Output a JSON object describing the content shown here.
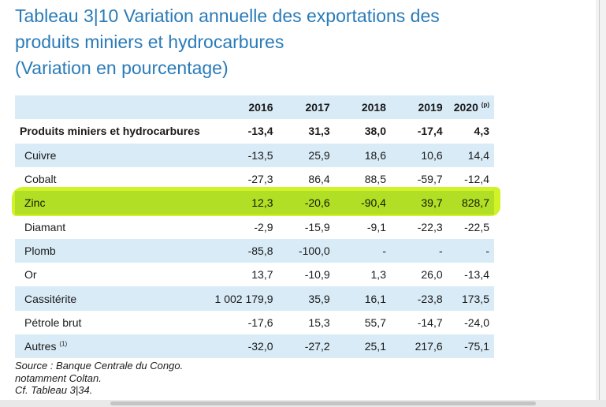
{
  "title": {
    "number": "Tableau 3|10",
    "line1_rest": "Variation annuelle des exportations des",
    "line2": "produits miniers et hydrocarbures",
    "line3": "(Variation en pourcentage)"
  },
  "table": {
    "headers": [
      "2016",
      "2017",
      "2018",
      "2019",
      "2020"
    ],
    "header_note": "(p)",
    "rows": [
      {
        "label": "Produits miniers et hydrocarbures",
        "values": [
          "-13,4",
          "31,3",
          "38,0",
          "-17,4",
          "4,3"
        ]
      },
      {
        "label": "Cuivre",
        "values": [
          "-13,5",
          "25,9",
          "18,6",
          "10,6",
          "14,4"
        ]
      },
      {
        "label": "Cobalt",
        "values": [
          "-27,3",
          "86,4",
          "88,5",
          "-59,7",
          "-12,4"
        ]
      },
      {
        "label": "Zinc",
        "values": [
          "12,3",
          "-20,6",
          "-90,4",
          "39,7",
          "828,7"
        ]
      },
      {
        "label": "Diamant",
        "values": [
          "-2,9",
          "-15,9",
          "-9,1",
          "-22,3",
          "-22,5"
        ]
      },
      {
        "label": "Plomb",
        "values": [
          "-85,8",
          "-100,0",
          "-",
          "-",
          "-"
        ]
      },
      {
        "label": "Or",
        "values": [
          "13,7",
          "-10,9",
          "1,3",
          "26,0",
          "-13,4"
        ]
      },
      {
        "label": "Cassitérite",
        "values": [
          "1 002 179,9",
          "35,9",
          "16,1",
          "-23,8",
          "173,5"
        ]
      },
      {
        "label": "Pétrole brut",
        "values": [
          "-17,6",
          "15,3",
          "55,7",
          "-14,7",
          "-24,0"
        ]
      },
      {
        "label": "Autres",
        "label_note": "(1)",
        "values": [
          "-32,0",
          "-27,2",
          "25,1",
          "217,6",
          "-75,1"
        ]
      }
    ]
  },
  "notes": {
    "source": "Source : Banque Centrale du Congo.",
    "note1": "notamment Coltan.",
    "note2": "Cf. Tableau 3|34."
  },
  "colors": {
    "title": "#2a7bb8",
    "shade": "#d9ebf7",
    "highlighter": "#c8f000"
  }
}
